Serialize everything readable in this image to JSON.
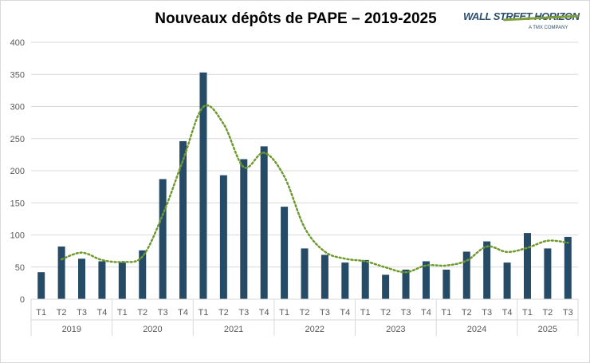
{
  "header": {
    "title": "Nouveaux dépôts de PAPE – 2019-2025",
    "logo_text": "WALL STREET HORIZON",
    "logo_subtext": "A TMX COMPANY"
  },
  "colors": {
    "bar": "#264b66",
    "trend": "#6f9a2f",
    "grid": "#d9d9d9",
    "axis_text": "#595959"
  },
  "chart_data": {
    "type": "bar",
    "title": "Nouveaux dépôts de PAPE – 2019-2025",
    "xlabel": "",
    "ylabel": "",
    "ylim": [
      0,
      400
    ],
    "yticks": [
      0,
      50,
      100,
      150,
      200,
      250,
      300,
      350,
      400
    ],
    "grid": true,
    "years": [
      {
        "label": "2019",
        "quarters": [
          "T1",
          "T2",
          "T3",
          "T4"
        ]
      },
      {
        "label": "2020",
        "quarters": [
          "T1",
          "T2",
          "T3",
          "T4"
        ]
      },
      {
        "label": "2021",
        "quarters": [
          "T1",
          "T2",
          "T3",
          "T4"
        ]
      },
      {
        "label": "2022",
        "quarters": [
          "T1",
          "T2",
          "T3",
          "T4"
        ]
      },
      {
        "label": "2023",
        "quarters": [
          "T1",
          "T2",
          "T3",
          "T4"
        ]
      },
      {
        "label": "2024",
        "quarters": [
          "T1",
          "T2",
          "T3",
          "T4"
        ]
      },
      {
        "label": "2025",
        "quarters": [
          "T1",
          "T2",
          "T3"
        ]
      }
    ],
    "values": [
      42,
      82,
      63,
      59,
      57,
      76,
      187,
      246,
      353,
      193,
      218,
      238,
      144,
      79,
      69,
      57,
      61,
      38,
      46,
      59,
      46,
      74,
      90,
      57,
      103,
      79,
      97
    ],
    "trendline": {
      "type": "moving-average-2",
      "values": [
        null,
        62,
        72.5,
        61,
        58,
        66.5,
        131.5,
        216.5,
        299.5,
        273,
        205.5,
        228,
        191,
        111.5,
        74,
        63,
        59,
        49.5,
        42,
        52.5,
        52.5,
        60,
        82,
        73.5,
        80,
        91,
        88
      ]
    }
  }
}
